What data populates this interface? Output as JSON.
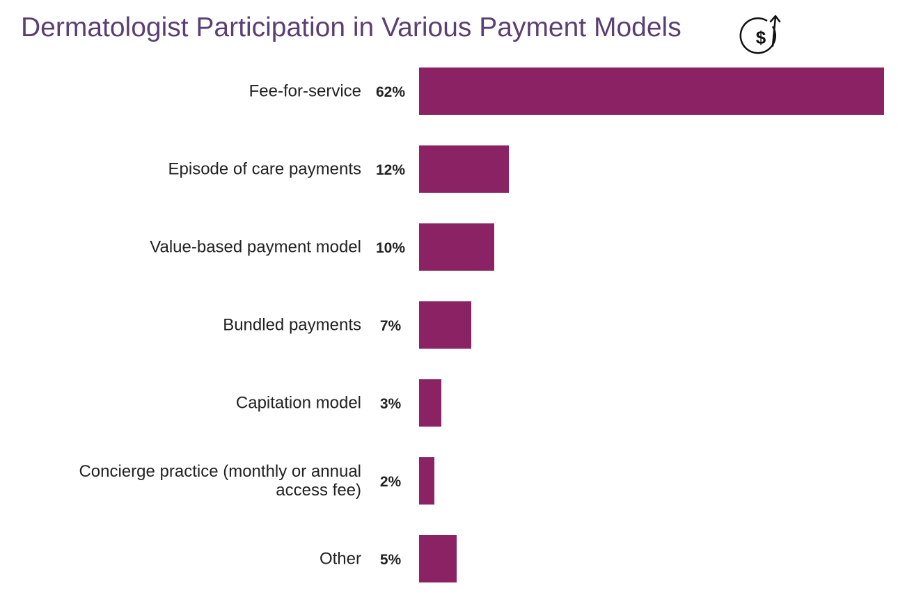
{
  "chart_data": {
    "type": "bar",
    "orientation": "horizontal",
    "title": "Dermatologist Participation in Various Payment Models",
    "categories": [
      "Fee-for-service",
      "Episode of care payments",
      "Value-based payment model",
      "Bundled payments",
      "Capitation model",
      "Concierge practice (monthly or annual access fee)",
      "Other"
    ],
    "values": [
      62,
      12,
      10,
      7,
      3,
      2,
      5
    ],
    "value_labels": [
      "62%",
      "12%",
      "10%",
      "7%",
      "3%",
      "2%",
      "5%"
    ],
    "color": "#8a2263"
  }
}
